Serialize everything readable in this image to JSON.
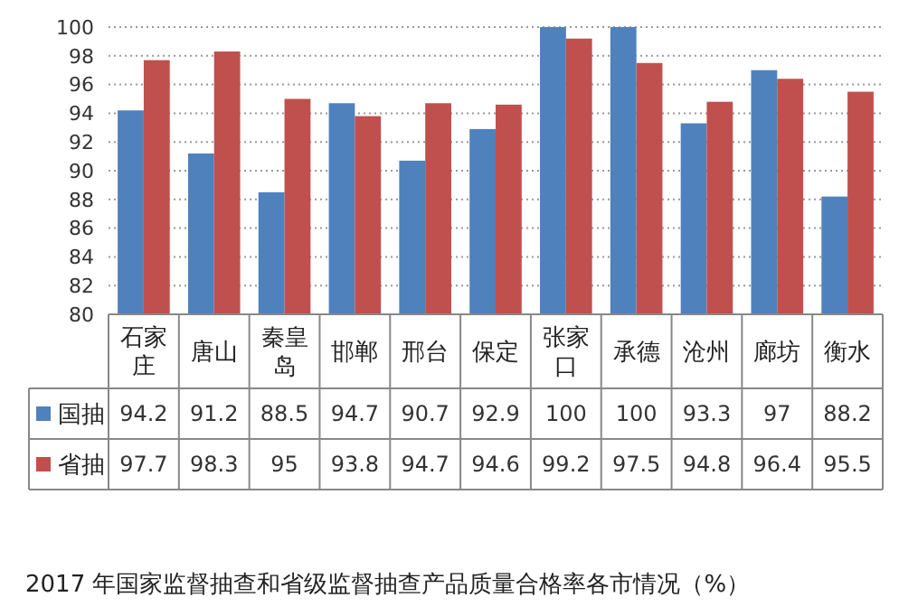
{
  "chart_data": {
    "type": "bar",
    "title": "2017 年国家监督抽查和省级监督抽查产品质量合格率各市情况（%）",
    "categories": [
      "石家庄",
      "唐山",
      "秦皇岛",
      "邯郸",
      "邢台",
      "保定",
      "张家口",
      "承德",
      "沧州",
      "廊坊",
      "衡水"
    ],
    "series": [
      {
        "name": "国抽",
        "color": "#4f81bd",
        "values": [
          94.2,
          91.2,
          88.5,
          94.7,
          90.7,
          92.9,
          100,
          100,
          93.3,
          97,
          88.2
        ]
      },
      {
        "name": "省抽",
        "color": "#c0504d",
        "values": [
          97.7,
          98.3,
          95,
          93.8,
          94.7,
          94.6,
          99.2,
          97.5,
          94.8,
          96.4,
          95.5
        ]
      }
    ],
    "ylim": [
      80,
      100
    ],
    "yticks": [
      80,
      82,
      84,
      86,
      88,
      90,
      92,
      94,
      96,
      98,
      100
    ],
    "grid": "y",
    "legend": "bottom",
    "data_labels": true
  }
}
